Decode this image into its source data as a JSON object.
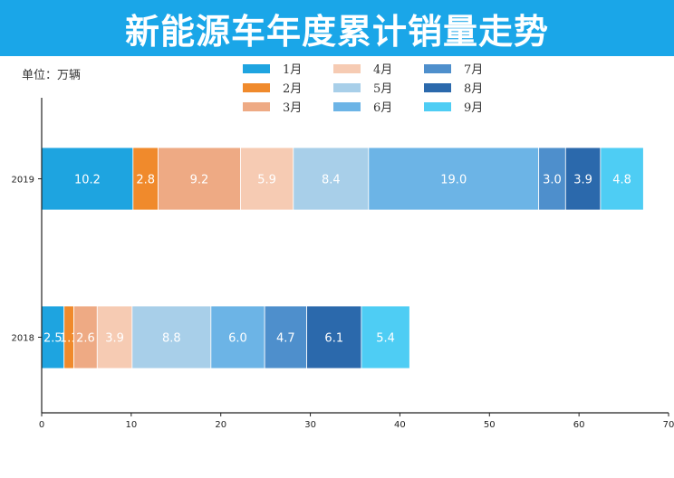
{
  "title": "新能源车年度累计销量走势",
  "unit_label": "单位：万辆",
  "colors": {
    "banner": "#1aa6e8"
  },
  "chart_data": {
    "type": "bar",
    "orientation": "horizontal",
    "stacked": true,
    "categories": [
      "2019",
      "2018"
    ],
    "series": [
      {
        "name": "1月",
        "color": "#1ea4e0",
        "values": [
          10.2,
          2.5
        ],
        "labels": [
          "10.2",
          "2.5"
        ]
      },
      {
        "name": "2月",
        "color": "#f08a2c",
        "values": [
          2.8,
          1.1
        ],
        "labels": [
          "2.8",
          "1.1"
        ]
      },
      {
        "name": "3月",
        "color": "#eeaa84",
        "values": [
          9.2,
          2.6
        ],
        "labels": [
          "9.2",
          "2.6"
        ]
      },
      {
        "name": "4月",
        "color": "#f6cbb3",
        "values": [
          5.9,
          3.9
        ],
        "labels": [
          "5.9",
          "3.9"
        ]
      },
      {
        "name": "5月",
        "color": "#a8cfe9",
        "values": [
          8.4,
          8.8
        ],
        "labels": [
          "8.4",
          "8.8"
        ]
      },
      {
        "name": "6月",
        "color": "#6cb4e6",
        "values": [
          19.0,
          6.0
        ],
        "labels": [
          "19.0",
          "6.0"
        ]
      },
      {
        "name": "7月",
        "color": "#4e8fcc",
        "values": [
          3.0,
          4.7
        ],
        "labels": [
          "3.0",
          "4.7"
        ]
      },
      {
        "name": "8月",
        "color": "#2b69ac",
        "values": [
          3.9,
          6.1
        ],
        "labels": [
          "3.9",
          "6.1"
        ]
      },
      {
        "name": "9月",
        "color": "#4ecdf4",
        "values": [
          4.8,
          5.4
        ],
        "labels": [
          "4.8",
          "5.4"
        ]
      }
    ],
    "xlim": [
      0,
      70
    ],
    "xticks": [
      0,
      10,
      20,
      30,
      40,
      50,
      60,
      70
    ],
    "legend_position": "top-center",
    "grid": false
  }
}
